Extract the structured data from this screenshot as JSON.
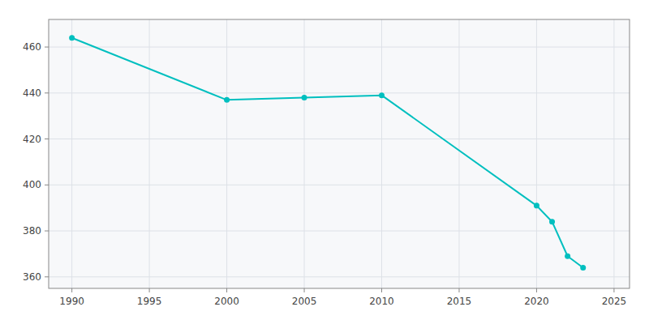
{
  "chart_data": {
    "type": "line",
    "x": [
      1990,
      2000,
      2005,
      2010,
      2020,
      2021,
      2022,
      2023
    ],
    "values": [
      464,
      437,
      438,
      439,
      391,
      384,
      369,
      364
    ],
    "color": "#00BFBF",
    "marker": "circle",
    "xlim": [
      1988.5,
      2026
    ],
    "ylim": [
      355,
      472
    ],
    "xticks": [
      1990,
      1995,
      2000,
      2005,
      2010,
      2015,
      2020,
      2025
    ],
    "yticks": [
      360,
      380,
      400,
      420,
      440,
      460
    ],
    "grid": true
  }
}
